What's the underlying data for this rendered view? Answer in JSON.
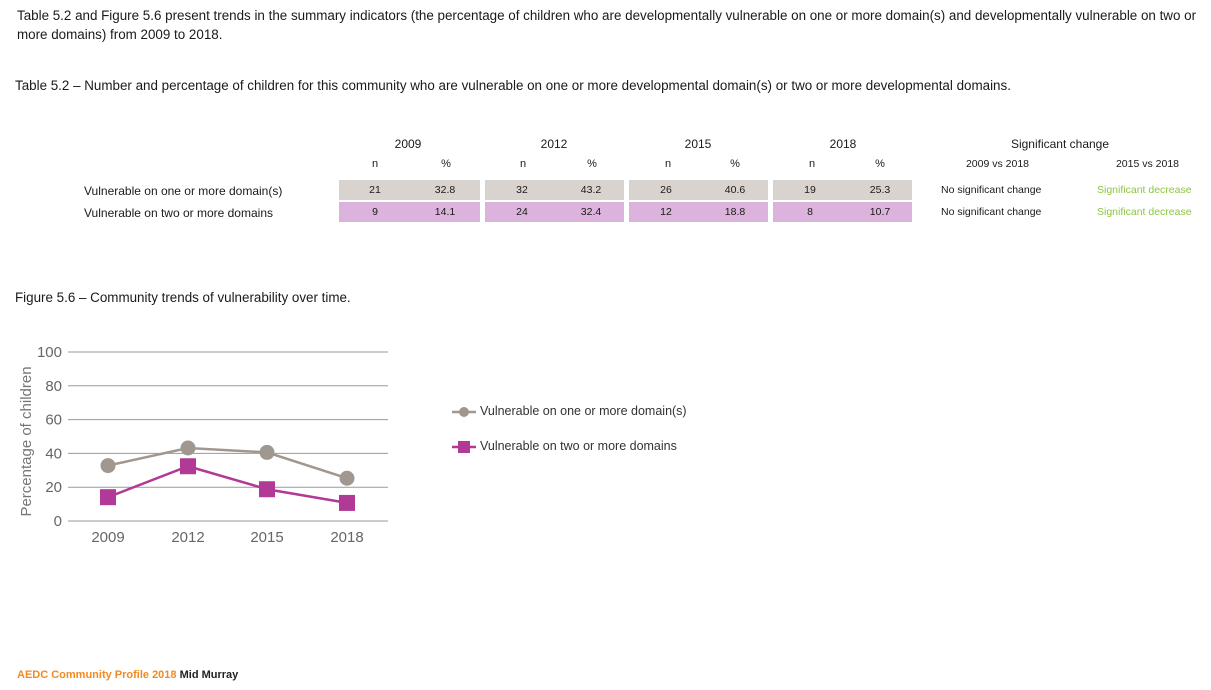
{
  "intro": "Table 5.2 and Figure 5.6 present trends in the summary indicators (the percentage of children who are developmentally vulnerable on one or more domain(s) and developmentally vulnerable on two or more domains) from 2009 to 2018.",
  "table_caption": {
    "label": "Table 5.2",
    "text": " – Number and percentage of children for this community who are vulnerable on one or more developmental domain(s) or two or more developmental domains."
  },
  "table": {
    "years": [
      "2009",
      "2012",
      "2015",
      "2018"
    ],
    "n_label": "n",
    "pct_label": "%",
    "sig_header": "Significant change",
    "sig_sub1": "2009 vs 2018",
    "sig_sub2": "2015 vs 2018",
    "rows": [
      {
        "label": "Vulnerable on one or more domain(s)",
        "values": [
          "21",
          "32.8",
          "32",
          "43.2",
          "26",
          "40.6",
          "19",
          "25.3"
        ],
        "sig1": "No significant change",
        "sig2": "Significant decrease"
      },
      {
        "label": "Vulnerable on two or more domains",
        "values": [
          "9",
          "14.1",
          "24",
          "32.4",
          "12",
          "18.8",
          "8",
          "10.7"
        ],
        "sig1": "No significant change",
        "sig2": "Significant decrease"
      }
    ]
  },
  "figure_caption": {
    "label": "Figure 5.6",
    "text": " – Community trends of vulnerability over time."
  },
  "chart_data": {
    "type": "line",
    "x": [
      "2009",
      "2012",
      "2015",
      "2018"
    ],
    "ylabel": "Percentage of children",
    "ylim": [
      0,
      100
    ],
    "yticks": [
      "0",
      "20",
      "40",
      "60",
      "80",
      "100"
    ],
    "grid": true,
    "legend_position": "right",
    "series": [
      {
        "name": "Vulnerable on one or more domain(s)",
        "values": [
          32.8,
          43.2,
          40.6,
          25.3
        ],
        "color": "#a09890",
        "marker": "circle"
      },
      {
        "name": "Vulnerable on two or more domains",
        "values": [
          14.1,
          32.4,
          18.8,
          10.7
        ],
        "color": "#b03a96",
        "marker": "square"
      }
    ]
  },
  "footer": {
    "brand": "AEDC Community Profile 2018",
    "place": "Mid Murray"
  }
}
